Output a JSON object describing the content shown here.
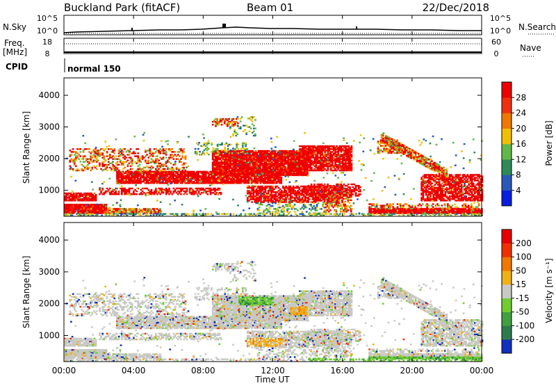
{
  "header": {
    "site": "Buckland Park (fitACF)",
    "beam": "Beam 01",
    "date": "22/Dec/2018"
  },
  "top_panels": {
    "left_labels": {
      "nsky": "N.Sky",
      "freq": "Freq.",
      "mhz": "[MHz]",
      "cpid": "CPID"
    },
    "right_labels": {
      "nsearch": "N.Search",
      "nave": "Nave"
    },
    "noise_ticks_left": [
      "10^5",
      "10^0"
    ],
    "noise_ticks_right": [
      "10^5",
      "10^0"
    ],
    "freq_ticks": [
      "18",
      "8"
    ],
    "nave_ticks": [
      "60",
      "0"
    ],
    "cpid_text": "normal 150"
  },
  "x_axis": {
    "ticks": [
      "00:00",
      "04:00",
      "08:00",
      "12:00",
      "16:00",
      "20:00",
      "00:00"
    ],
    "label": "Time UT"
  },
  "chart_data": [
    {
      "type": "heatmap",
      "quantity": "Power",
      "ylabel": "Slant Range [km]",
      "yticks": [
        "1000",
        "2000",
        "3000",
        "4000"
      ],
      "ylim": [
        180,
        4550
      ],
      "xlim": [
        0,
        24
      ],
      "colorbar": {
        "label": "Power [dB]",
        "ticks": [
          "4",
          "8",
          "12",
          "16",
          "20",
          "24",
          "28"
        ],
        "colors": [
          "#0a1ee0",
          "#2858b8",
          "#2e8a58",
          "#60b848",
          "#f0c000",
          "#f07800",
          "#f03010",
          "#ee0000"
        ]
      }
    },
    {
      "type": "heatmap",
      "quantity": "Velocity",
      "ylabel": "Slant Range [km]",
      "yticks": [
        "1000",
        "2000",
        "3000",
        "4000"
      ],
      "ylim": [
        180,
        4550
      ],
      "xlim": [
        0,
        24
      ],
      "colorbar": {
        "label": "Velocity [m s⁻¹]",
        "ticks": [
          "200",
          "100",
          "50",
          "15",
          "-15",
          "-50",
          "-100",
          "-200"
        ],
        "colors": [
          "#1030c0",
          "#2e7a4e",
          "#40a040",
          "#70cc30",
          "#c8c8c4",
          "#f0b018",
          "#f07800",
          "#f03000",
          "#e80000"
        ]
      }
    }
  ],
  "colors": {
    "ground_scatter": "#c8c8c4"
  }
}
